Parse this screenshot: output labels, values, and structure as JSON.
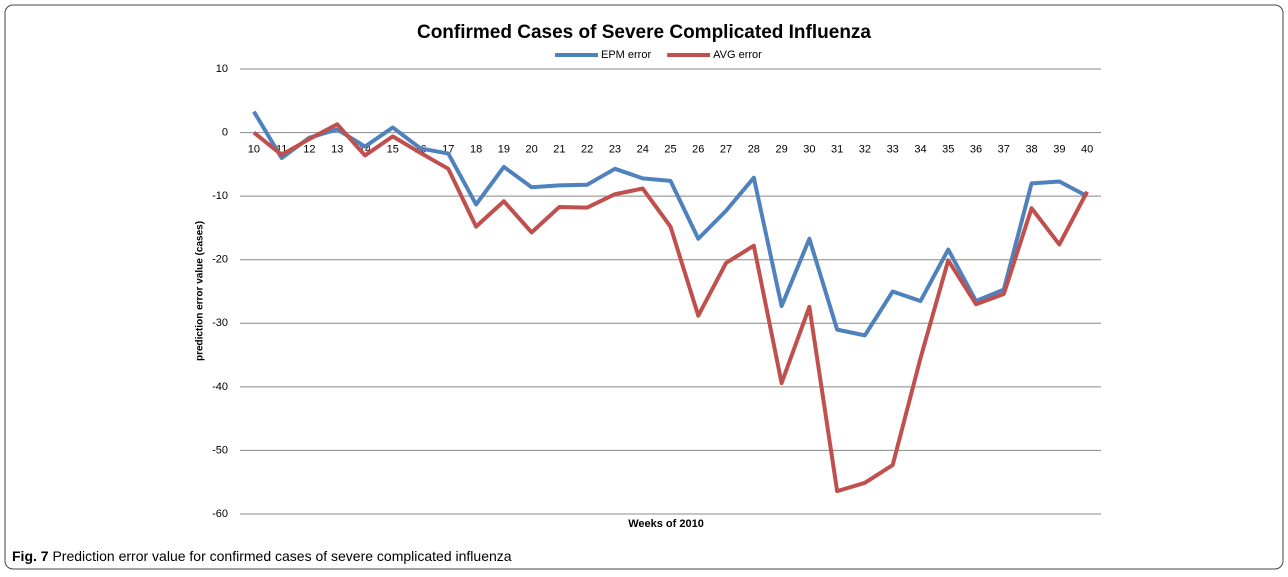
{
  "chart_data": {
    "type": "line",
    "title": "Confirmed Cases of Severe Complicated Influenza",
    "x_label": "Weeks of 2010",
    "y_label": "prediction error value (cases)",
    "categories": [
      "10",
      "11",
      "12",
      "13",
      "14",
      "15",
      "16",
      "17",
      "18",
      "19",
      "20",
      "21",
      "22",
      "23",
      "24",
      "25",
      "26",
      "27",
      "28",
      "29",
      "30",
      "31",
      "32",
      "33",
      "34",
      "35",
      "36",
      "37",
      "38",
      "39",
      "40"
    ],
    "series": [
      {
        "name": "EPM error",
        "color": "#4f81bd",
        "values": [
          3.3,
          -4,
          -0.8,
          0.5,
          -2.2,
          0.8,
          -2.5,
          -3.3,
          -11.3,
          -5.4,
          -8.6,
          -8.3,
          -8.2,
          -5.7,
          -7.2,
          -7.6,
          -16.7,
          -12.3,
          -7.1,
          -27.3,
          -16.7,
          -31,
          -31.9,
          -25,
          -26.5,
          -18.4,
          -26.5,
          -24.7,
          -8,
          -7.7,
          -10
        ]
      },
      {
        "name": "AVG error",
        "color": "#c0504d",
        "values": [
          0,
          -3.5,
          -1,
          1.3,
          -3.6,
          -0.6,
          -3.2,
          -5.7,
          -14.8,
          -10.8,
          -15.7,
          -11.7,
          -11.8,
          -9.7,
          -8.8,
          -14.8,
          -28.8,
          -20.5,
          -17.8,
          -39.4,
          -27.4,
          -56.4,
          -55.1,
          -52.3,
          -35.5,
          -20.1,
          -27,
          -25.4,
          -11.9,
          -17.6,
          -9.3
        ]
      }
    ],
    "ylim": [
      -60,
      10
    ],
    "yticks": [
      10,
      0,
      -10,
      -20,
      -30,
      -40,
      -50,
      -60
    ],
    "grid": true,
    "legend": "top"
  },
  "caption": {
    "label": "Fig. 7",
    "text": "Prediction error value for confirmed cases of severe complicated influenza"
  }
}
